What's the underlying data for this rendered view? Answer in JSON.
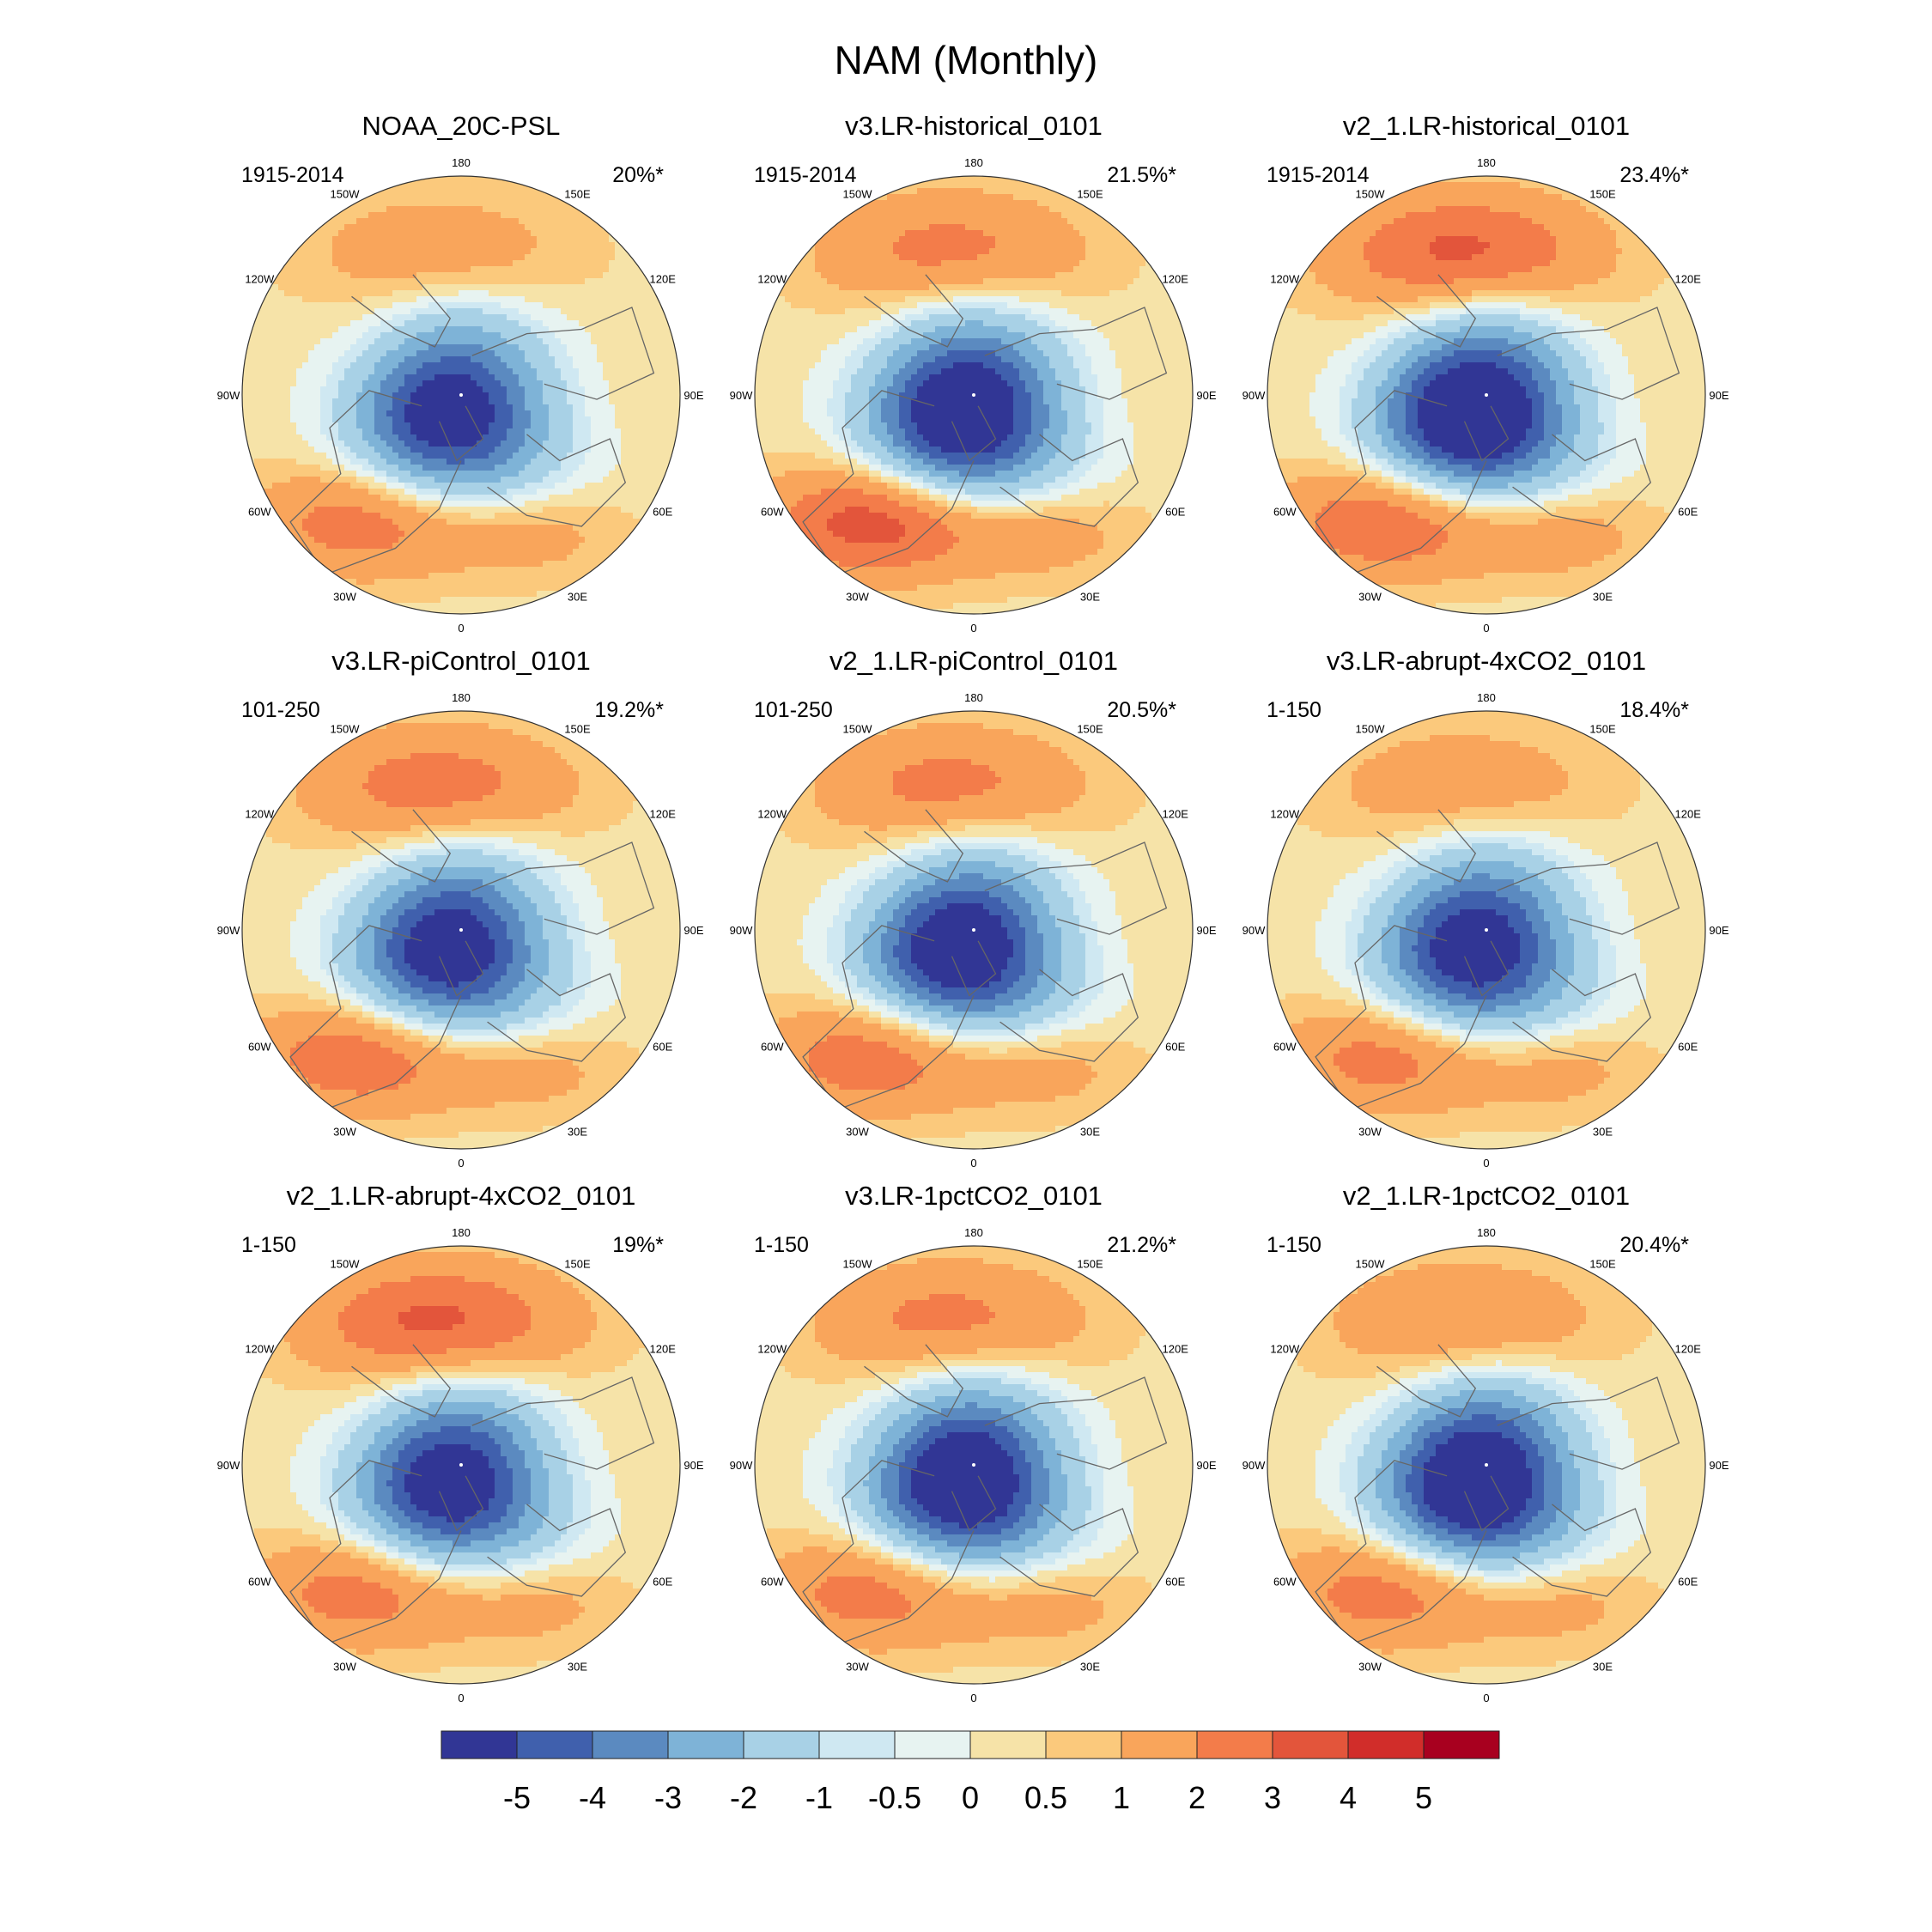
{
  "figure": {
    "title": "NAM (Monthly)"
  },
  "chart_data": [
    {
      "type": "heatmap",
      "projection": "north-polar-stereographic",
      "title": "NOAA_20C-PSL",
      "period": "1915-2014",
      "variance_explained": "20%*",
      "pattern": {
        "pole_min": -4.3,
        "arctic_lobe": -4.6,
        "pacific_max": 1.6,
        "atlantic_max": 2.4,
        "atlantic_secondary": 1.3
      }
    },
    {
      "type": "heatmap",
      "projection": "north-polar-stereographic",
      "title": "v3.LR-historical_0101",
      "period": "1915-2014",
      "variance_explained": "21.5%*",
      "pattern": {
        "pole_min": -5.1,
        "arctic_lobe": -5.0,
        "pacific_max": 2.4,
        "atlantic_max": 3.4,
        "atlantic_secondary": 1.4
      }
    },
    {
      "type": "heatmap",
      "projection": "north-polar-stereographic",
      "title": "v2_1.LR-historical_0101",
      "period": "1915-2014",
      "variance_explained": "23.4%*",
      "pattern": {
        "pole_min": -5.0,
        "arctic_lobe": -5.6,
        "pacific_max": 3.3,
        "atlantic_max": 2.8,
        "atlantic_secondary": 1.5
      }
    },
    {
      "type": "heatmap",
      "projection": "north-polar-stereographic",
      "title": "v3.LR-piControl_0101",
      "period": "101-250",
      "variance_explained": "19.2%*",
      "pattern": {
        "pole_min": -4.3,
        "arctic_lobe": -4.7,
        "pacific_max": 2.6,
        "atlantic_max": 2.7,
        "atlantic_secondary": 1.3
      }
    },
    {
      "type": "heatmap",
      "projection": "north-polar-stereographic",
      "title": "v2_1.LR-piControl_0101",
      "period": "101-250",
      "variance_explained": "20.5%*",
      "pattern": {
        "pole_min": -4.5,
        "arctic_lobe": -5.1,
        "pacific_max": 2.4,
        "atlantic_max": 2.6,
        "atlantic_secondary": 1.3
      }
    },
    {
      "type": "heatmap",
      "projection": "north-polar-stereographic",
      "title": "v3.LR-abrupt-4xCO2_0101",
      "period": "1-150",
      "variance_explained": "18.4%*",
      "pattern": {
        "pole_min": -4.4,
        "arctic_lobe": -4.6,
        "pacific_max": 1.7,
        "atlantic_max": 2.3,
        "atlantic_secondary": 1.3
      }
    },
    {
      "type": "heatmap",
      "projection": "north-polar-stereographic",
      "title": "v2_1.LR-abrupt-4xCO2_0101",
      "period": "1-150",
      "variance_explained": "19%*",
      "pattern": {
        "pole_min": -4.5,
        "arctic_lobe": -4.6,
        "pacific_max": 3.3,
        "atlantic_max": 2.4,
        "atlantic_secondary": 1.3
      }
    },
    {
      "type": "heatmap",
      "projection": "north-polar-stereographic",
      "title": "v3.LR-1pctCO2_0101",
      "period": "1-150",
      "variance_explained": "21.2%*",
      "pattern": {
        "pole_min": -5.2,
        "arctic_lobe": -5.0,
        "pacific_max": 2.4,
        "atlantic_max": 2.4,
        "atlantic_secondary": 1.4
      }
    },
    {
      "type": "heatmap",
      "projection": "north-polar-stereographic",
      "title": "v2_1.LR-1pctCO2_0101",
      "period": "1-150",
      "variance_explained": "20.4%*",
      "pattern": {
        "pole_min": -5.3,
        "arctic_lobe": -5.2,
        "pacific_max": 2.1,
        "atlantic_max": 2.4,
        "atlantic_secondary": 1.3
      }
    }
  ],
  "map_labels": {
    "longitudes": [
      "180",
      "150E",
      "120E",
      "90E",
      "60E",
      "30E",
      "0",
      "30W",
      "60W",
      "90W",
      "120W",
      "150W"
    ]
  },
  "colorbar": {
    "boundaries": [
      -5,
      -4,
      -3,
      -2,
      -1,
      -0.5,
      0,
      0.5,
      1,
      2,
      3,
      4,
      5
    ],
    "tick_labels": [
      "-5",
      "-4",
      "-3",
      "-2",
      "-1",
      "-0.5",
      "0",
      "0.5",
      "1",
      "2",
      "3",
      "4",
      "5"
    ],
    "colors": [
      "#313695",
      "#4060ad",
      "#5b8ac0",
      "#7eb3d7",
      "#a8d1e6",
      "#cfe8f2",
      "#e7f3f1",
      "#f6e3a8",
      "#fbc97c",
      "#f9a55b",
      "#f37c4a",
      "#e3553b",
      "#d12d2a",
      "#a8001f"
    ]
  }
}
